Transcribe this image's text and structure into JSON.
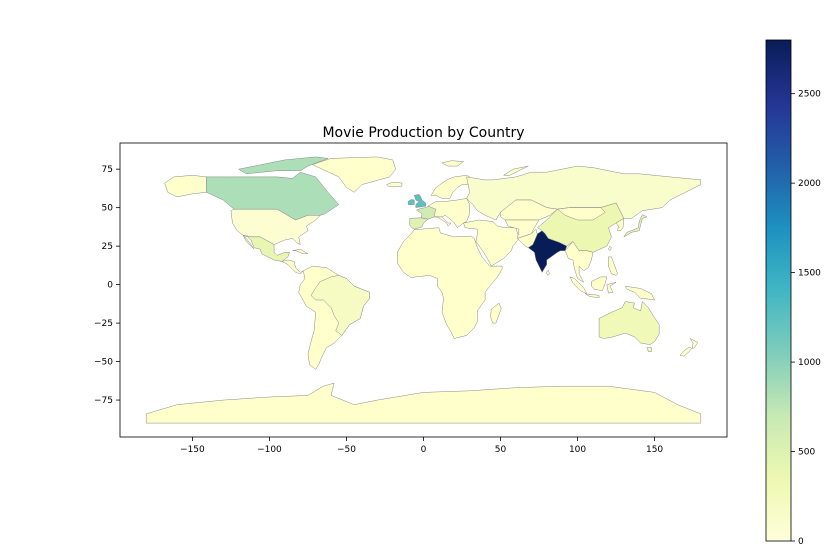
{
  "chart_data": {
    "type": "choropleth",
    "title": "Movie Production by Country",
    "xlabel": "",
    "ylabel": "",
    "x_ticks": [
      -150,
      -100,
      -50,
      0,
      50,
      100,
      150
    ],
    "y_ticks": [
      75,
      50,
      25,
      0,
      -25,
      -50,
      -75
    ],
    "xlim": [
      -197,
      197
    ],
    "ylim": [
      -99,
      92
    ],
    "colorbar": {
      "colormap": "YlGnBu",
      "range": [
        0,
        2800
      ],
      "ticks": [
        0,
        500,
        1000,
        1500,
        2000,
        2500
      ]
    },
    "colormap_stops": [
      "#ffffd9",
      "#edf8b1",
      "#c7e9b4",
      "#7fcdbb",
      "#41b6c4",
      "#1d91c0",
      "#225ea8",
      "#253494",
      "#081d58"
    ],
    "land_color": "#ffffcc",
    "border_color": "#888888",
    "regions": [
      {
        "name": "India",
        "value": 2800
      },
      {
        "name": "United Kingdom",
        "value": 1250
      },
      {
        "name": "Canada",
        "value": 830
      },
      {
        "name": "France",
        "value": 620
      },
      {
        "name": "Spain",
        "value": 480
      },
      {
        "name": "Mexico",
        "value": 390
      },
      {
        "name": "China",
        "value": 360
      },
      {
        "name": "Japan",
        "value": 420
      },
      {
        "name": "Australia",
        "value": 300
      },
      {
        "name": "Brazil",
        "value": 200
      },
      {
        "name": "Russia",
        "value": 110
      },
      {
        "name": "United States",
        "value": 60
      }
    ]
  }
}
